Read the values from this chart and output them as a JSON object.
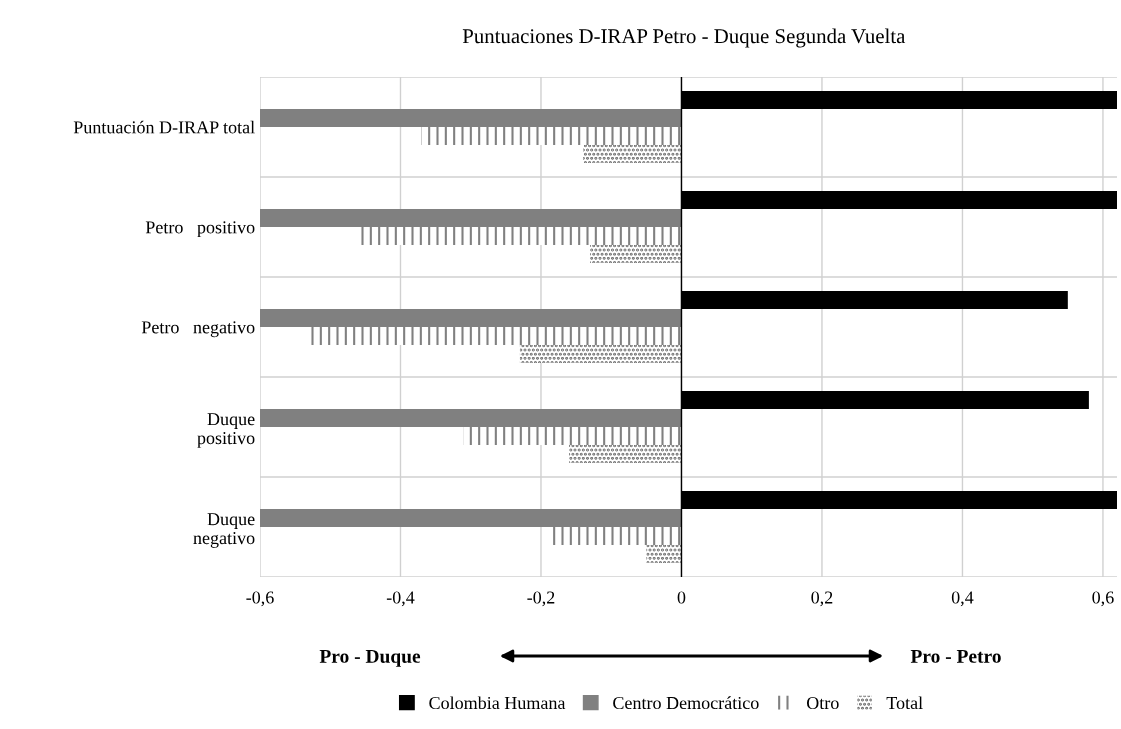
{
  "chart_data": {
    "type": "bar",
    "orientation": "horizontal",
    "title": "Puntuaciones D-IRAP Petro - Duque Segunda Vuelta",
    "categories": [
      "Puntuación D-IRAP total",
      "Petro   positivo",
      "Petro   negativo",
      "Duque\npositivo",
      "Duque\nnegativo"
    ],
    "series": [
      {
        "name": "Colombia Humana",
        "color": "#000000",
        "values": [
          0.62,
          0.62,
          0.55,
          0.58,
          0.62
        ]
      },
      {
        "name": "Centro Democrático",
        "color": "#808080",
        "values": [
          -0.6,
          -0.6,
          -0.6,
          -0.6,
          -0.6
        ]
      },
      {
        "name": "Otro",
        "color": "#808080",
        "values": [
          -0.37,
          -0.46,
          -0.53,
          -0.31,
          -0.19
        ]
      },
      {
        "name": "Total",
        "color": "#606060",
        "values": [
          -0.14,
          -0.13,
          -0.23,
          -0.16,
          -0.05
        ]
      }
    ],
    "xlim": [
      -0.6,
      0.62
    ],
    "xticks": [
      {
        "value": -0.6,
        "label": "-0,6"
      },
      {
        "value": -0.4,
        "label": "-0,4"
      },
      {
        "value": -0.2,
        "label": "-0,2"
      },
      0,
      {
        "value": 0.2,
        "label": "0,2"
      },
      {
        "value": 0.4,
        "label": "0,4"
      },
      {
        "value": 0.6,
        "label": "0,6"
      }
    ],
    "annotations": [
      "Pro - Duque",
      "Pro - Petro"
    ],
    "grid": true,
    "legend": "bottom"
  }
}
